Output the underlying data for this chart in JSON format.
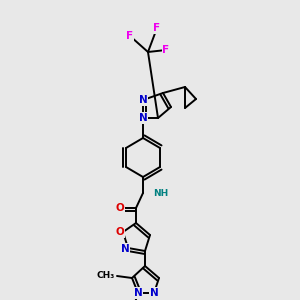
{
  "background_color": "#e8e8e8",
  "bond_color": "#000000",
  "atom_colors": {
    "N": "#0000cc",
    "O": "#dd0000",
    "F": "#ee00ee",
    "C": "#000000",
    "H": "#008080"
  },
  "figsize": [
    3.0,
    3.0
  ],
  "dpi": 100
}
